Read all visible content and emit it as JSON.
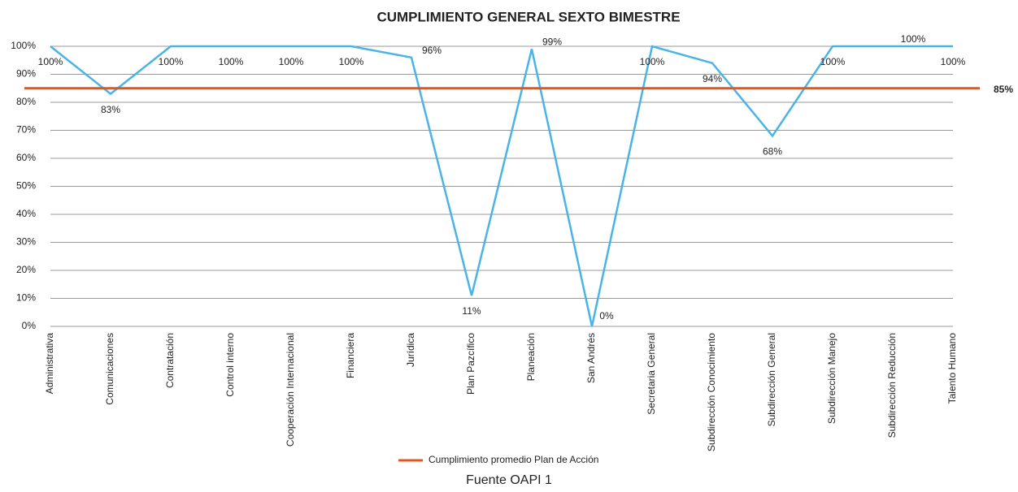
{
  "chart_data": {
    "type": "line",
    "title": "CUMPLIMIENTO GENERAL SEXTO BIMESTRE",
    "categories": [
      "Administrativa",
      "Comunicaciones",
      "Contratación",
      "Control interno",
      "Cooperación Internacional",
      "Financiera",
      "Jurídica",
      "Plan Pazcífico",
      "Planeación",
      "San Andrés",
      "Secretaria General",
      "Subdirección Conocimiento",
      "Subdirección General",
      "Subdirección Manejo",
      "Subdirección Reducción",
      "Talento Humano"
    ],
    "series": [
      {
        "color": "#4ab3e8",
        "values": [
          100,
          83,
          100,
          100,
          100,
          100,
          96,
          11,
          99,
          0,
          100,
          94,
          68,
          100,
          100,
          100
        ],
        "value_labels": [
          "100%",
          "83%",
          "100%",
          "100%",
          "100%",
          "100%",
          "96%",
          "11%",
          "99%",
          "0%",
          "100%",
          "94%",
          "68%",
          "100%",
          "100%",
          "100%"
        ]
      }
    ],
    "reference_line": {
      "name": "Cumplimiento promedio Plan de Acción",
      "value": 85,
      "label": "85%",
      "color": "#e0561c"
    },
    "ylim": [
      0,
      100
    ],
    "yticks": [
      {
        "value": 0,
        "label": "0%"
      },
      {
        "value": 10,
        "label": "10%"
      },
      {
        "value": 20,
        "label": "20%"
      },
      {
        "value": 30,
        "label": "30%"
      },
      {
        "value": 40,
        "label": "40%"
      },
      {
        "value": 50,
        "label": "50%"
      },
      {
        "value": 60,
        "label": "60%"
      },
      {
        "value": 70,
        "label": "70%"
      },
      {
        "value": 80,
        "label": "80%"
      },
      {
        "value": 90,
        "label": "90%"
      },
      {
        "value": 100,
        "label": "100%"
      }
    ],
    "grid": true,
    "caption": "Fuente OAPI 1"
  }
}
